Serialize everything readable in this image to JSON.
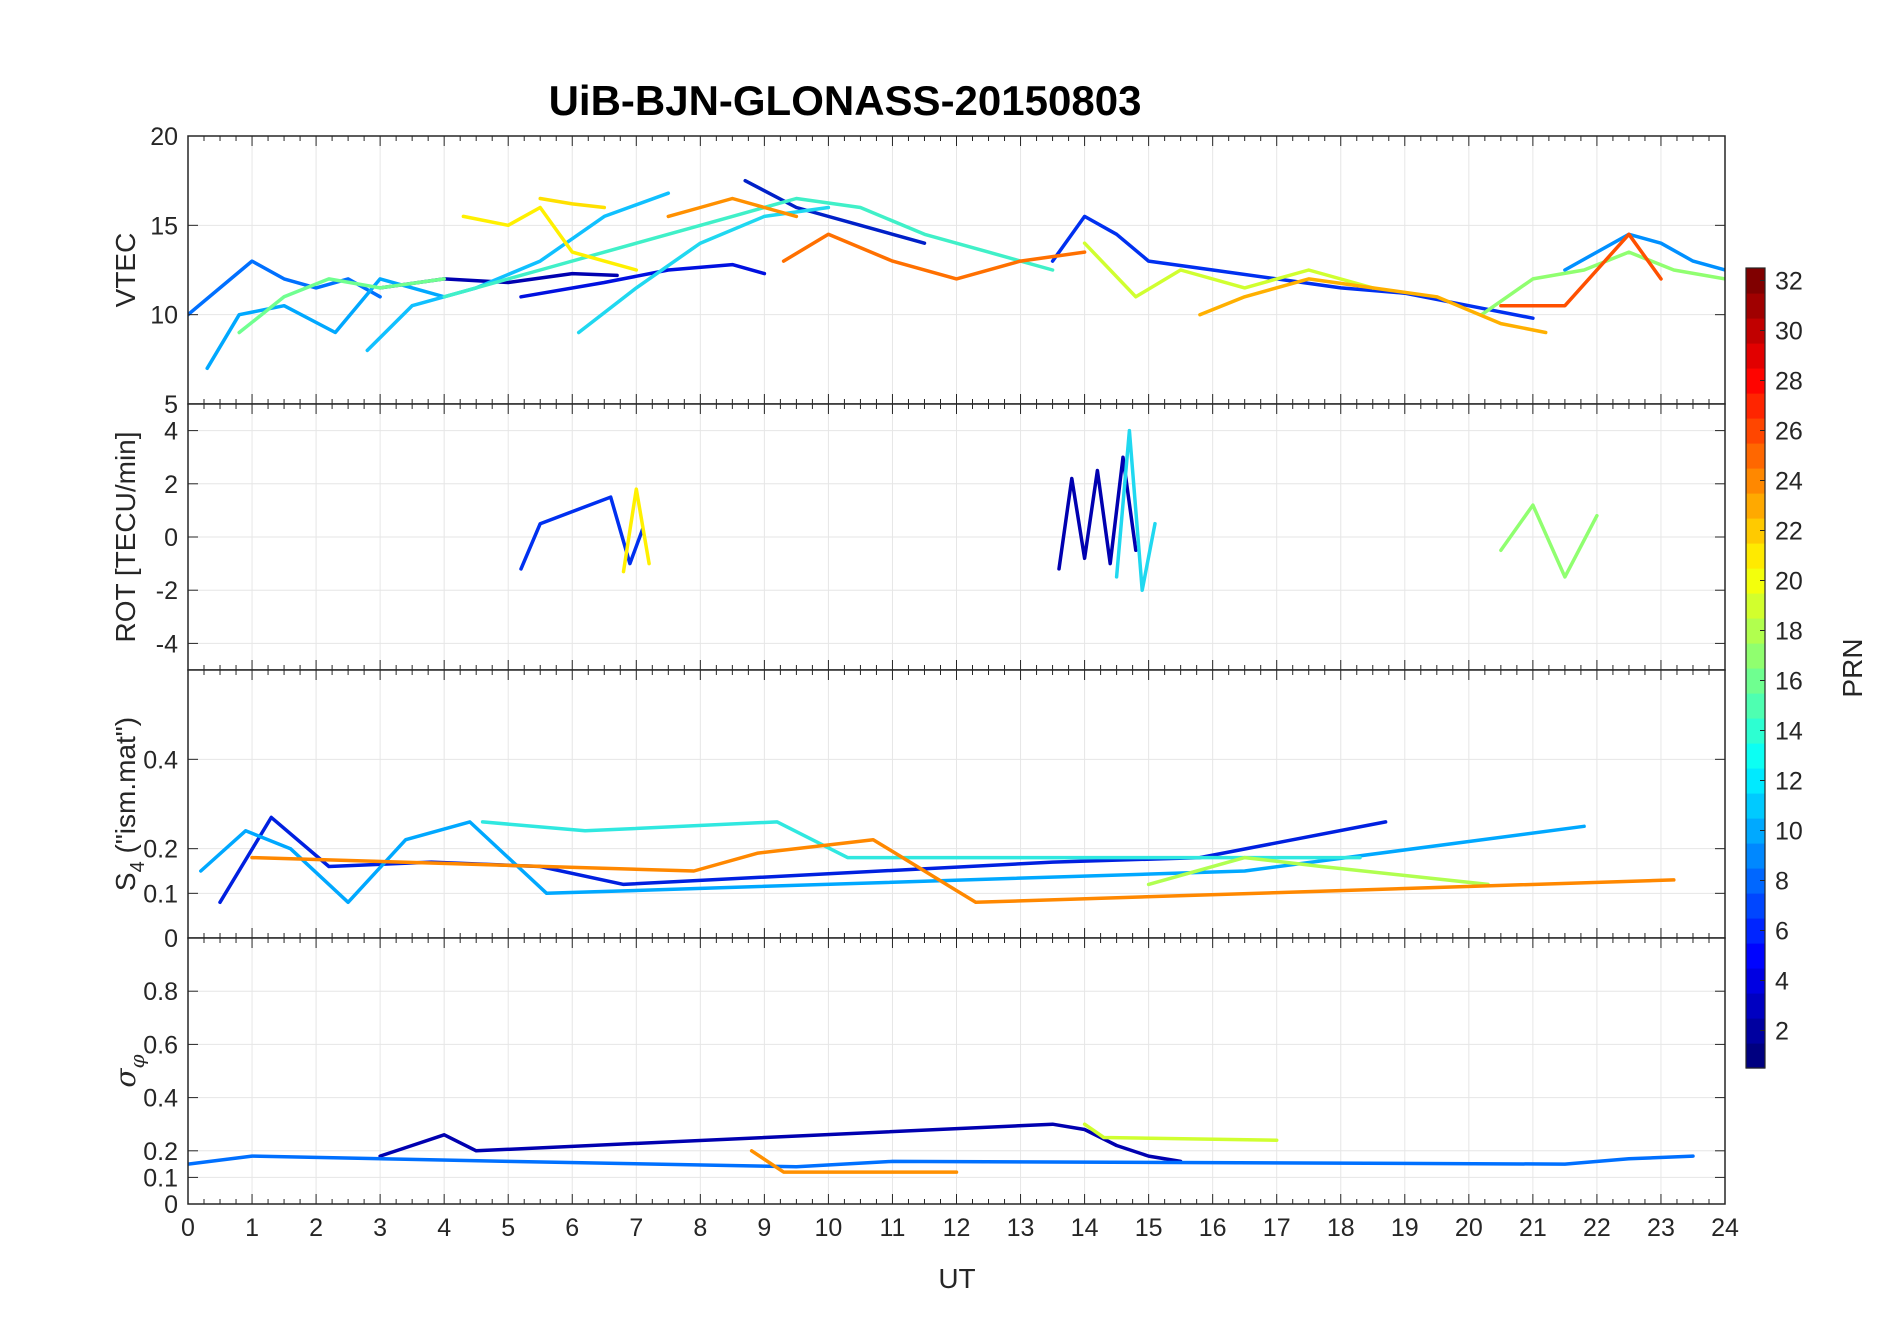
{
  "chart_data": {
    "type": "line",
    "title": "UiB-BJN-GLONASS-20150803",
    "xlabel": "UT",
    "xlim": [
      0,
      24
    ],
    "xticks": [
      0,
      1,
      2,
      3,
      4,
      5,
      6,
      7,
      8,
      9,
      10,
      11,
      12,
      13,
      14,
      15,
      16,
      17,
      18,
      19,
      20,
      21,
      22,
      23,
      24
    ],
    "colorbar": {
      "label": "PRN",
      "range": [
        1,
        32
      ],
      "ticks": [
        2,
        4,
        6,
        8,
        10,
        12,
        14,
        16,
        18,
        20,
        22,
        24,
        26,
        28,
        30,
        32
      ],
      "colormap": "jet"
    },
    "panels": [
      {
        "name": "vtec",
        "ylabel": "VTEC",
        "ylim": [
          5,
          20
        ],
        "yticks": [
          5,
          10,
          15,
          20
        ],
        "series": [
          {
            "prn": 2,
            "color": "#0000B0",
            "x": [
              3.0,
              4.0,
              5.0,
              6.0,
              6.7
            ],
            "y": [
              11.5,
              12.0,
              11.8,
              12.3,
              12.2
            ]
          },
          {
            "prn": 4,
            "color": "#0010E0",
            "x": [
              5.2,
              6.5,
              7.5,
              8.5,
              9.0
            ],
            "y": [
              11.0,
              11.8,
              12.5,
              12.8,
              12.3
            ]
          },
          {
            "prn": 3,
            "color": "#0020C8",
            "x": [
              8.7,
              9.5,
              10.5,
              11.5
            ],
            "y": [
              17.5,
              16.0,
              15.0,
              14.0
            ]
          },
          {
            "prn": 5,
            "color": "#0030F0",
            "x": [
              13.5,
              14.0,
              14.5,
              15.0,
              16.0,
              17.0,
              18.0,
              19.0,
              20.0,
              21.0
            ],
            "y": [
              13.0,
              15.5,
              14.5,
              13.0,
              12.5,
              12.0,
              11.5,
              11.2,
              10.5,
              9.8
            ]
          },
          {
            "prn": 8,
            "color": "#0070FF",
            "x": [
              0.0,
              0.5,
              1.0,
              1.5,
              2.0,
              2.5,
              3.0
            ],
            "y": [
              10.0,
              11.5,
              13.0,
              12.0,
              11.5,
              12.0,
              11.0
            ]
          },
          {
            "prn": 9,
            "color": "#0090FF",
            "x": [
              21.5,
              22.0,
              22.5,
              23.0,
              23.5,
              24.0
            ],
            "y": [
              12.5,
              13.5,
              14.5,
              14.0,
              13.0,
              12.5
            ]
          },
          {
            "prn": 10,
            "color": "#00A8FF",
            "x": [
              0.3,
              0.8,
              1.5,
              2.3,
              3.0,
              4.0
            ],
            "y": [
              7.0,
              10.0,
              10.5,
              9.0,
              12.0,
              11.0
            ]
          },
          {
            "prn": 11,
            "color": "#10C0FF",
            "x": [
              2.8,
              3.5,
              4.5,
              5.5,
              6.5,
              7.5
            ],
            "y": [
              8.0,
              10.5,
              11.5,
              13.0,
              15.5,
              16.8
            ]
          },
          {
            "prn": 12,
            "color": "#20D8F0",
            "x": [
              6.1,
              7.0,
              8.0,
              9.0,
              10.0
            ],
            "y": [
              9.0,
              11.5,
              14.0,
              15.5,
              16.0
            ]
          },
          {
            "prn": 14,
            "color": "#40F0C8",
            "x": [
              4.0,
              5.5,
              7.0,
              8.5,
              9.5,
              10.5,
              11.5,
              12.5,
              13.5
            ],
            "y": [
              11.0,
              12.5,
              14.0,
              15.5,
              16.5,
              16.0,
              14.5,
              13.5,
              12.5
            ]
          },
          {
            "prn": 16,
            "color": "#70FF90",
            "x": [
              0.8,
              1.5,
              2.2,
              3.0,
              4.0
            ],
            "y": [
              9.0,
              11.0,
              12.0,
              11.5,
              12.0
            ]
          },
          {
            "prn": 17,
            "color": "#90FF70",
            "x": [
              20.2,
              21.0,
              21.8,
              22.5,
              23.2,
              24.0
            ],
            "y": [
              10.0,
              12.0,
              12.5,
              13.5,
              12.5,
              12.0
            ]
          },
          {
            "prn": 19,
            "color": "#D0FF30",
            "x": [
              14.0,
              14.8,
              15.5,
              16.5,
              17.5,
              18.5
            ],
            "y": [
              14.0,
              11.0,
              12.5,
              11.5,
              12.5,
              11.5
            ]
          },
          {
            "prn": 20,
            "color": "#FFF000",
            "x": [
              4.3,
              5.0,
              5.5,
              6.0,
              6.5,
              7.0
            ],
            "y": [
              15.5,
              15.0,
              16.0,
              13.5,
              13.0,
              12.5
            ]
          },
          {
            "prn": 21,
            "color": "#FFE000",
            "x": [
              5.5,
              6.0,
              6.5
            ],
            "y": [
              16.5,
              16.2,
              16.0
            ]
          },
          {
            "prn": 22,
            "color": "#FFB000",
            "x": [
              15.8,
              16.5,
              17.5,
              18.5,
              19.5,
              20.5,
              21.2
            ],
            "y": [
              10.0,
              11.0,
              12.0,
              11.5,
              11.0,
              9.5,
              9.0
            ]
          },
          {
            "prn": 23,
            "color": "#FF9000",
            "x": [
              7.5,
              8.0,
              8.5,
              9.0,
              9.5
            ],
            "y": [
              15.5,
              16.0,
              16.5,
              16.0,
              15.5
            ]
          },
          {
            "prn": 24,
            "color": "#FF7000",
            "x": [
              9.3,
              10.0,
              11.0,
              12.0,
              13.0,
              14.0
            ],
            "y": [
              13.0,
              14.5,
              13.0,
              12.0,
              13.0,
              13.5
            ]
          },
          {
            "prn": 25,
            "color": "#FF5000",
            "x": [
              20.5,
              21.5,
              22.5,
              23.0
            ],
            "y": [
              10.5,
              10.5,
              14.5,
              12.0
            ]
          }
        ]
      },
      {
        "name": "rot",
        "ylabel": "ROT [TECU/min]",
        "ylim": [
          -5,
          5
        ],
        "yticks": [
          -4,
          -2,
          0,
          2,
          4
        ],
        "series": [
          {
            "prn": 2,
            "color": "#0000B0",
            "x": [
              13.6,
              13.8,
              14.0,
              14.2,
              14.4,
              14.6,
              14.8
            ],
            "y": [
              -1.2,
              2.2,
              -0.8,
              2.5,
              -1.0,
              3.0,
              -0.5
            ]
          },
          {
            "prn": 5,
            "color": "#0030F0",
            "x": [
              5.2,
              5.5,
              6.6,
              6.9,
              7.1
            ],
            "y": [
              -1.2,
              0.5,
              1.5,
              -1.0,
              0.3
            ]
          },
          {
            "prn": 12,
            "color": "#20D8F0",
            "x": [
              14.5,
              14.7,
              14.9,
              15.1
            ],
            "y": [
              -1.5,
              4.0,
              -2.0,
              0.5
            ]
          },
          {
            "prn": 17,
            "color": "#90FF70",
            "x": [
              20.5,
              21.0,
              21.5,
              22.0
            ],
            "y": [
              -0.5,
              1.2,
              -1.5,
              0.8
            ]
          },
          {
            "prn": 20,
            "color": "#FFF000",
            "x": [
              6.8,
              7.0,
              7.2
            ],
            "y": [
              -1.3,
              1.8,
              -1.0
            ]
          }
        ]
      },
      {
        "name": "s4",
        "ylabel": "S4 (\"ism.mat\")",
        "ylabel_main": "S",
        "ylabel_sub": "4",
        "ylabel_rest": " (\"ism.mat\")",
        "ylim": [
          0,
          0.6
        ],
        "yticks": [
          0,
          0.1,
          0.2,
          0.4
        ],
        "ytick_labels": [
          "0",
          "0.1",
          "0.2",
          "0.4"
        ],
        "series": [
          {
            "prn": 4,
            "color": "#0020E0",
            "x": [
              0.5,
              1.3,
              2.2,
              3.8,
              5.5,
              6.8,
              13.5,
              15.8,
              18.7
            ],
            "y": [
              0.08,
              0.27,
              0.16,
              0.17,
              0.16,
              0.12,
              0.17,
              0.18,
              0.26
            ]
          },
          {
            "prn": 10,
            "color": "#00A8FF",
            "x": [
              0.2,
              0.9,
              1.6,
              2.5,
              3.4,
              4.4,
              5.6,
              16.5,
              21.8
            ],
            "y": [
              0.15,
              0.24,
              0.2,
              0.08,
              0.22,
              0.26,
              0.1,
              0.15,
              0.25
            ]
          },
          {
            "prn": 13,
            "color": "#30E8E0",
            "x": [
              4.6,
              6.2,
              9.2,
              10.3,
              18.3
            ],
            "y": [
              0.26,
              0.24,
              0.26,
              0.18,
              0.18
            ]
          },
          {
            "prn": 18,
            "color": "#B0FF50",
            "x": [
              15.0,
              16.5,
              17.7,
              20.3
            ],
            "y": [
              0.12,
              0.18,
              0.16,
              0.12
            ]
          },
          {
            "prn": 23,
            "color": "#FF8800",
            "x": [
              1.0,
              7.9,
              8.9,
              10.7,
              12.3,
              23.2
            ],
            "y": [
              0.18,
              0.15,
              0.19,
              0.22,
              0.08,
              0.13
            ]
          }
        ]
      },
      {
        "name": "sigma",
        "ylabel": "σφ",
        "ylabel_main": "σ",
        "ylabel_sub": "φ",
        "ylim": [
          0,
          1
        ],
        "yticks": [
          0,
          0.1,
          0.2,
          0.4,
          0.6,
          0.8
        ],
        "ytick_labels": [
          "0",
          "0.1",
          "0.2",
          "0.4",
          "0.6",
          "0.8"
        ],
        "series": [
          {
            "prn": 2,
            "color": "#0000B0",
            "x": [
              3.0,
              3.5,
              4.0,
              4.5,
              13.5,
              14.0,
              14.5,
              15.0,
              15.5
            ],
            "y": [
              0.18,
              0.22,
              0.26,
              0.2,
              0.3,
              0.28,
              0.22,
              0.18,
              0.16
            ]
          },
          {
            "prn": 8,
            "color": "#0070FF",
            "x": [
              0.0,
              1.0,
              5.0,
              9.5,
              11.0,
              21.5,
              22.5,
              23.5
            ],
            "y": [
              0.15,
              0.18,
              0.16,
              0.14,
              0.16,
              0.15,
              0.17,
              0.18
            ]
          },
          {
            "prn": 19,
            "color": "#D0FF30",
            "x": [
              14.0,
              14.3,
              17.0
            ],
            "y": [
              0.3,
              0.25,
              0.24
            ]
          },
          {
            "prn": 23,
            "color": "#FF9000",
            "x": [
              8.8,
              9.3,
              12.0
            ],
            "y": [
              0.2,
              0.12,
              0.12
            ]
          }
        ]
      }
    ]
  }
}
